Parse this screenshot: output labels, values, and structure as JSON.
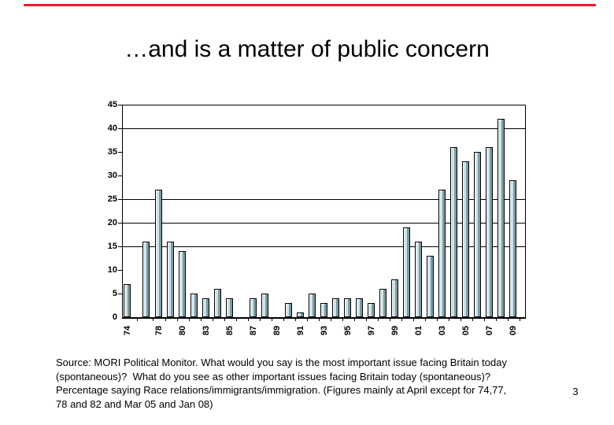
{
  "slide": {
    "title": "…and is a matter of public concern",
    "page_number": "3",
    "source_text": "Source: MORI Political Monitor. What would you say is the most important issue facing Britain today\n(spontaneous)?  What do you see as other important issues facing Britain today (spontaneous)?\nPercentage saying Race relations/immigrants/immigration. (Figures mainly at April except for 74,77,\n78 and 82 and Mar 05 and Jan 08)",
    "accent_rule_color": "#ed1b24"
  },
  "chart_data": {
    "type": "bar",
    "title": "",
    "xlabel": "",
    "ylabel": "",
    "ylim": [
      0,
      45
    ],
    "y_ticks": [
      0,
      5,
      10,
      15,
      20,
      25,
      30,
      35,
      40,
      45
    ],
    "gridline_values": [
      15,
      20,
      25,
      40,
      45
    ],
    "legend": "none",
    "bar_color": "#cfe3e9",
    "bar_shadow_color": "#7f9aa2",
    "axis_color": "#000000",
    "slots": [
      {
        "label": "74",
        "value": 7
      },
      {
        "label": "",
        "value": 16
      },
      {
        "label": "78",
        "value": 27
      },
      {
        "label": "",
        "value": 16
      },
      {
        "label": "80",
        "value": 14
      },
      {
        "label": "",
        "value": 5
      },
      {
        "label": "83",
        "value": 4
      },
      {
        "label": "",
        "value": 6
      },
      {
        "label": "85",
        "value": 4
      },
      {
        "label": "",
        "value": 0
      },
      {
        "label": "87",
        "value": 4
      },
      {
        "label": "",
        "value": 5
      },
      {
        "label": "89",
        "value": 0
      },
      {
        "label": "",
        "value": 3
      },
      {
        "label": "91",
        "value": 1
      },
      {
        "label": "",
        "value": 5
      },
      {
        "label": "93",
        "value": 3
      },
      {
        "label": "",
        "value": 4
      },
      {
        "label": "95",
        "value": 4
      },
      {
        "label": "",
        "value": 4
      },
      {
        "label": "97",
        "value": 3
      },
      {
        "label": "",
        "value": 6
      },
      {
        "label": "99",
        "value": 8
      },
      {
        "label": "",
        "value": 19
      },
      {
        "label": "01",
        "value": 16
      },
      {
        "label": "",
        "value": 13
      },
      {
        "label": "03",
        "value": 27
      },
      {
        "label": "",
        "value": 36
      },
      {
        "label": "05",
        "value": 33
      },
      {
        "label": "",
        "value": 35
      },
      {
        "label": "07",
        "value": 36
      },
      {
        "label": "",
        "value": 42
      },
      {
        "label": "09",
        "value": 29
      }
    ]
  }
}
